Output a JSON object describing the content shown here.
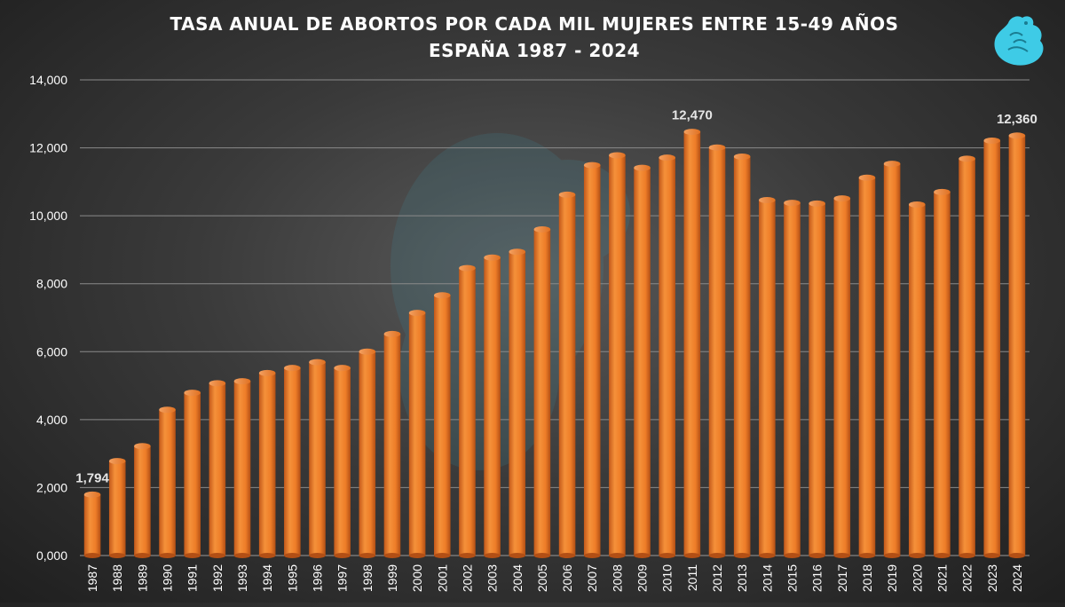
{
  "chart_data": {
    "type": "bar",
    "title": "TASA ANUAL DE ABORTOS POR CADA MIL MUJERES ENTRE 15-49 AÑOS",
    "subtitle": "ESPAÑA 1987 - 2024",
    "xlabel": "",
    "ylabel": "",
    "ylim": [
      0,
      14
    ],
    "yticks": [
      {
        "value": 0,
        "label": "0,000"
      },
      {
        "value": 2,
        "label": "2,000"
      },
      {
        "value": 4,
        "label": "4,000"
      },
      {
        "value": 6,
        "label": "6,000"
      },
      {
        "value": 8,
        "label": "8,000"
      },
      {
        "value": 10,
        "label": "10,000"
      },
      {
        "value": 12,
        "label": "12,000"
      },
      {
        "value": 14,
        "label": "14,000"
      }
    ],
    "grid": true,
    "legend": "none",
    "bar_color": "#f0802a",
    "categories": [
      "1987",
      "1988",
      "1989",
      "1990",
      "1991",
      "1992",
      "1993",
      "1994",
      "1995",
      "1996",
      "1997",
      "1998",
      "1999",
      "2000",
      "2001",
      "2002",
      "2003",
      "2004",
      "2005",
      "2006",
      "2007",
      "2008",
      "2009",
      "2010",
      "2011",
      "2012",
      "2013",
      "2014",
      "2015",
      "2016",
      "2017",
      "2018",
      "2019",
      "2020",
      "2021",
      "2022",
      "2023",
      "2024"
    ],
    "values": [
      1.794,
      2.78,
      3.22,
      4.29,
      4.79,
      5.07,
      5.13,
      5.37,
      5.52,
      5.69,
      5.52,
      6.0,
      6.52,
      7.14,
      7.66,
      8.46,
      8.77,
      8.94,
      9.6,
      10.62,
      11.49,
      11.78,
      11.41,
      11.71,
      12.47,
      12.01,
      11.74,
      10.46,
      10.38,
      10.36,
      10.51,
      11.12,
      11.53,
      10.33,
      10.7,
      11.68,
      12.21,
      12.36
    ],
    "data_labels": [
      {
        "index": 0,
        "text": "1,794"
      },
      {
        "index": 24,
        "text": "12,470"
      },
      {
        "index": 37,
        "text": "12,360"
      }
    ]
  },
  "logo": {
    "name": "eagle-logo",
    "color": "#3ecbe6"
  }
}
